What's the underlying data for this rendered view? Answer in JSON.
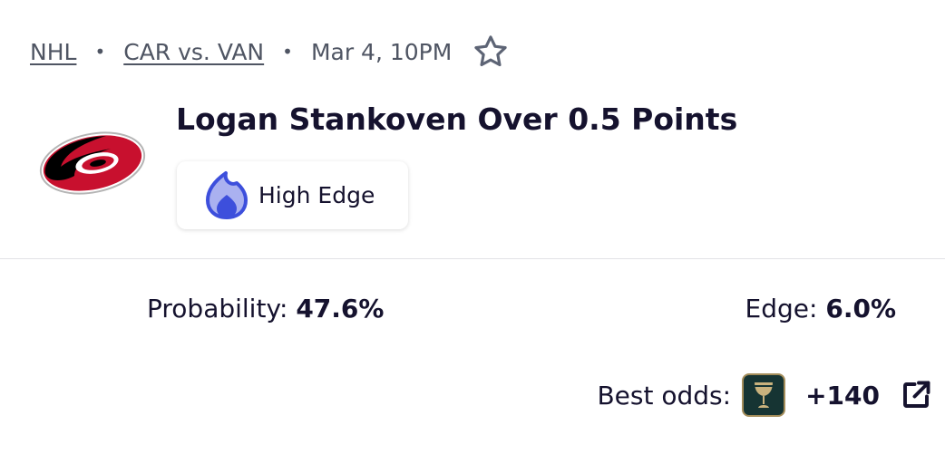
{
  "breadcrumb": {
    "league": "NHL",
    "matchup": "CAR vs. VAN",
    "datetime": "Mar 4, 10PM",
    "separator": "•"
  },
  "team_logo": "carolina-hurricanes-logo",
  "title": "Logan Stankoven Over 0.5 Points",
  "badge": {
    "label": "High Edge",
    "icon": "flame-icon",
    "color": "#3d4fdc"
  },
  "stats": {
    "probability_label": "Probability:",
    "probability_value": "47.6%",
    "edge_label": "Edge:",
    "edge_value": "6.0%"
  },
  "odds": {
    "label": "Best odds:",
    "sportsbook_icon": "chalice-icon",
    "value": "+140",
    "link_icon": "external-link-icon"
  }
}
